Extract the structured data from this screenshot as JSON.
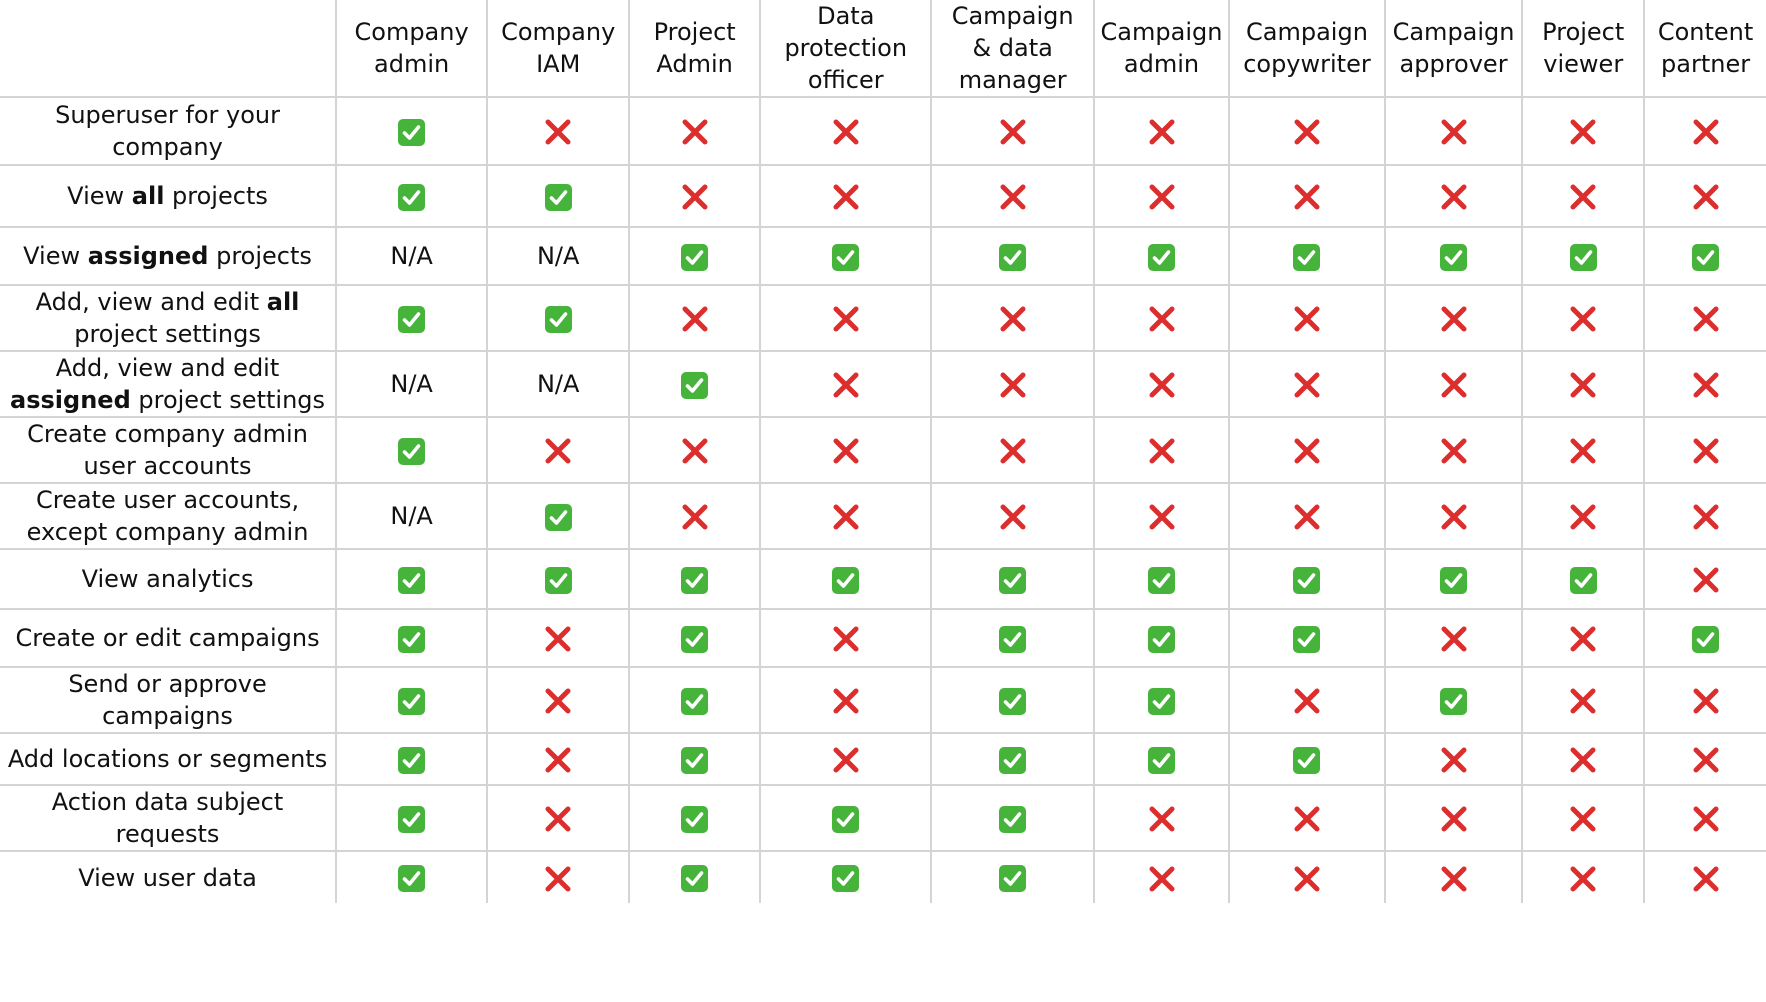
{
  "columns": [
    "Company\nadmin",
    "Company\nIAM",
    "Project\nAdmin",
    "Data\nprotection\nofficer",
    "Campaign\n& data\nmanager",
    "Campaign\nadmin",
    "Campaign\ncopywriter",
    "Campaign\napprover",
    "Project\nviewer",
    "Content\npartner"
  ],
  "legend": {
    "yes_icon": "check-mark-icon",
    "no_icon": "cross-mark-icon",
    "na_text": "N/A"
  },
  "colors": {
    "check_bg": "#46b33b",
    "cross": "#dd2e2e",
    "grid": "#d4d4d4"
  },
  "rows": [
    {
      "parts": [
        {
          "t": "Superuser for your company",
          "b": false
        }
      ],
      "values": [
        "yes",
        "no",
        "no",
        "no",
        "no",
        "no",
        "no",
        "no",
        "no",
        "no"
      ]
    },
    {
      "parts": [
        {
          "t": "View ",
          "b": false
        },
        {
          "t": "all",
          "b": true
        },
        {
          "t": " projects",
          "b": false
        }
      ],
      "values": [
        "yes",
        "yes",
        "no",
        "no",
        "no",
        "no",
        "no",
        "no",
        "no",
        "no"
      ]
    },
    {
      "parts": [
        {
          "t": "View ",
          "b": false
        },
        {
          "t": "assigned",
          "b": true
        },
        {
          "t": " projects",
          "b": false
        }
      ],
      "values": [
        "na",
        "na",
        "yes",
        "yes",
        "yes",
        "yes",
        "yes",
        "yes",
        "yes",
        "yes"
      ]
    },
    {
      "parts": [
        {
          "t": "Add, view and edit ",
          "b": false
        },
        {
          "t": "all",
          "b": true
        },
        {
          "t": " project settings",
          "b": false
        }
      ],
      "values": [
        "yes",
        "yes",
        "no",
        "no",
        "no",
        "no",
        "no",
        "no",
        "no",
        "no"
      ]
    },
    {
      "parts": [
        {
          "t": "Add, view and edit ",
          "b": false
        },
        {
          "t": "assigned",
          "b": true
        },
        {
          "t": " project settings",
          "b": false
        }
      ],
      "values": [
        "na",
        "na",
        "yes",
        "no",
        "no",
        "no",
        "no",
        "no",
        "no",
        "no"
      ]
    },
    {
      "parts": [
        {
          "t": "Create company admin user accounts",
          "b": false
        }
      ],
      "values": [
        "yes",
        "no",
        "no",
        "no",
        "no",
        "no",
        "no",
        "no",
        "no",
        "no"
      ]
    },
    {
      "parts": [
        {
          "t": "Create user accounts, except company admin",
          "b": false
        }
      ],
      "values": [
        "na",
        "yes",
        "no",
        "no",
        "no",
        "no",
        "no",
        "no",
        "no",
        "no"
      ]
    },
    {
      "parts": [
        {
          "t": "View analytics",
          "b": false
        }
      ],
      "values": [
        "yes",
        "yes",
        "yes",
        "yes",
        "yes",
        "yes",
        "yes",
        "yes",
        "yes",
        "no"
      ]
    },
    {
      "parts": [
        {
          "t": "Create or edit campaigns",
          "b": false
        }
      ],
      "values": [
        "yes",
        "no",
        "yes",
        "no",
        "yes",
        "yes",
        "yes",
        "no",
        "no",
        "yes"
      ]
    },
    {
      "parts": [
        {
          "t": "Send or approve campaigns",
          "b": false
        }
      ],
      "values": [
        "yes",
        "no",
        "yes",
        "no",
        "yes",
        "yes",
        "no",
        "yes",
        "no",
        "no"
      ]
    },
    {
      "parts": [
        {
          "t": "Add locations or segments",
          "b": false
        }
      ],
      "values": [
        "yes",
        "no",
        "yes",
        "no",
        "yes",
        "yes",
        "yes",
        "no",
        "no",
        "no"
      ]
    },
    {
      "parts": [
        {
          "t": "Action data subject requests",
          "b": false
        }
      ],
      "values": [
        "yes",
        "no",
        "yes",
        "yes",
        "yes",
        "no",
        "no",
        "no",
        "no",
        "no"
      ]
    },
    {
      "parts": [
        {
          "t": "View user data",
          "b": false
        }
      ],
      "values": [
        "yes",
        "no",
        "yes",
        "yes",
        "yes",
        "no",
        "no",
        "no",
        "no",
        "no"
      ]
    }
  ]
}
